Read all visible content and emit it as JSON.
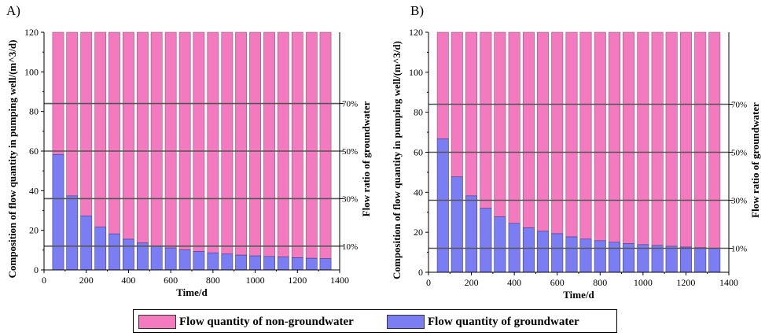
{
  "colors": {
    "non_groundwater": "#f47ac0",
    "groundwater": "#7b7ef2",
    "hline": "#555555"
  },
  "legend": {
    "non_groundwater": "Flow quantity of non-groundwater",
    "groundwater": "Flow quantity of groundwater"
  },
  "chart_data": [
    {
      "panel": "A)",
      "type": "bar",
      "stacked": true,
      "x": [
        67,
        133,
        200,
        267,
        333,
        400,
        467,
        533,
        600,
        667,
        733,
        800,
        867,
        933,
        1000,
        1067,
        1133,
        1200,
        1267,
        1333
      ],
      "series": [
        {
          "name": "Flow quantity of groundwater",
          "values": [
            58.3,
            37.4,
            27.3,
            21.6,
            18.2,
            15.5,
            13.6,
            12.1,
            11.1,
            10.1,
            9.3,
            8.6,
            8.0,
            7.5,
            7.1,
            6.8,
            6.5,
            6.2,
            5.9,
            5.7
          ]
        },
        {
          "name": "Flow quantity of non-groundwater",
          "values": [
            61.7,
            82.6,
            92.7,
            98.4,
            101.8,
            104.5,
            106.4,
            107.9,
            108.9,
            109.9,
            110.7,
            111.4,
            112.0,
            112.5,
            112.9,
            113.2,
            113.5,
            113.8,
            114.1,
            114.3
          ]
        }
      ],
      "xlabel": "Time/d",
      "ylabel": "Composition of flow quantity in pumping well/(m^3/d)",
      "ylabel_right": "Flow ratio of groundwater",
      "xlim": [
        0,
        1400
      ],
      "ylim": [
        0,
        120
      ],
      "xticks": [
        0,
        200,
        400,
        600,
        800,
        1000,
        1200,
        1400
      ],
      "yticks": [
        0,
        20,
        40,
        60,
        80,
        100,
        120
      ],
      "ratio_lines": [
        {
          "label": "10%",
          "y": 12
        },
        {
          "label": "30%",
          "y": 36
        },
        {
          "label": "50%",
          "y": 60
        },
        {
          "label": "70%",
          "y": 84
        }
      ]
    },
    {
      "panel": "B)",
      "type": "bar",
      "stacked": true,
      "x": [
        67,
        133,
        200,
        267,
        333,
        400,
        467,
        533,
        600,
        667,
        733,
        800,
        867,
        933,
        1000,
        1067,
        1133,
        1200,
        1267,
        1333
      ],
      "series": [
        {
          "name": "Flow quantity of groundwater",
          "values": [
            66.7,
            47.7,
            38.2,
            32.0,
            27.7,
            24.4,
            22.2,
            20.5,
            19.3,
            17.7,
            16.6,
            15.8,
            15.0,
            14.3,
            13.8,
            13.4,
            13.0,
            12.6,
            12.3,
            12.0
          ]
        },
        {
          "name": "Flow quantity of non-groundwater",
          "values": [
            53.3,
            72.3,
            81.8,
            88.0,
            92.3,
            95.6,
            97.8,
            99.5,
            100.7,
            102.3,
            103.4,
            104.2,
            105.0,
            105.7,
            106.2,
            106.6,
            107.0,
            107.4,
            107.7,
            108.0
          ]
        }
      ],
      "xlabel": "Time/d",
      "ylabel": "Composition of flow quantity in pumping well/(m^3/d)",
      "ylabel_right": "Flow ratio of groundwater",
      "xlim": [
        0,
        1400
      ],
      "ylim": [
        0,
        120
      ],
      "xticks": [
        0,
        200,
        400,
        600,
        800,
        1000,
        1200,
        1400
      ],
      "yticks": [
        0,
        20,
        40,
        60,
        80,
        100,
        120
      ],
      "ratio_lines": [
        {
          "label": "10%",
          "y": 12
        },
        {
          "label": "30%",
          "y": 36
        },
        {
          "label": "50%",
          "y": 60
        },
        {
          "label": "70%",
          "y": 84
        }
      ]
    }
  ]
}
